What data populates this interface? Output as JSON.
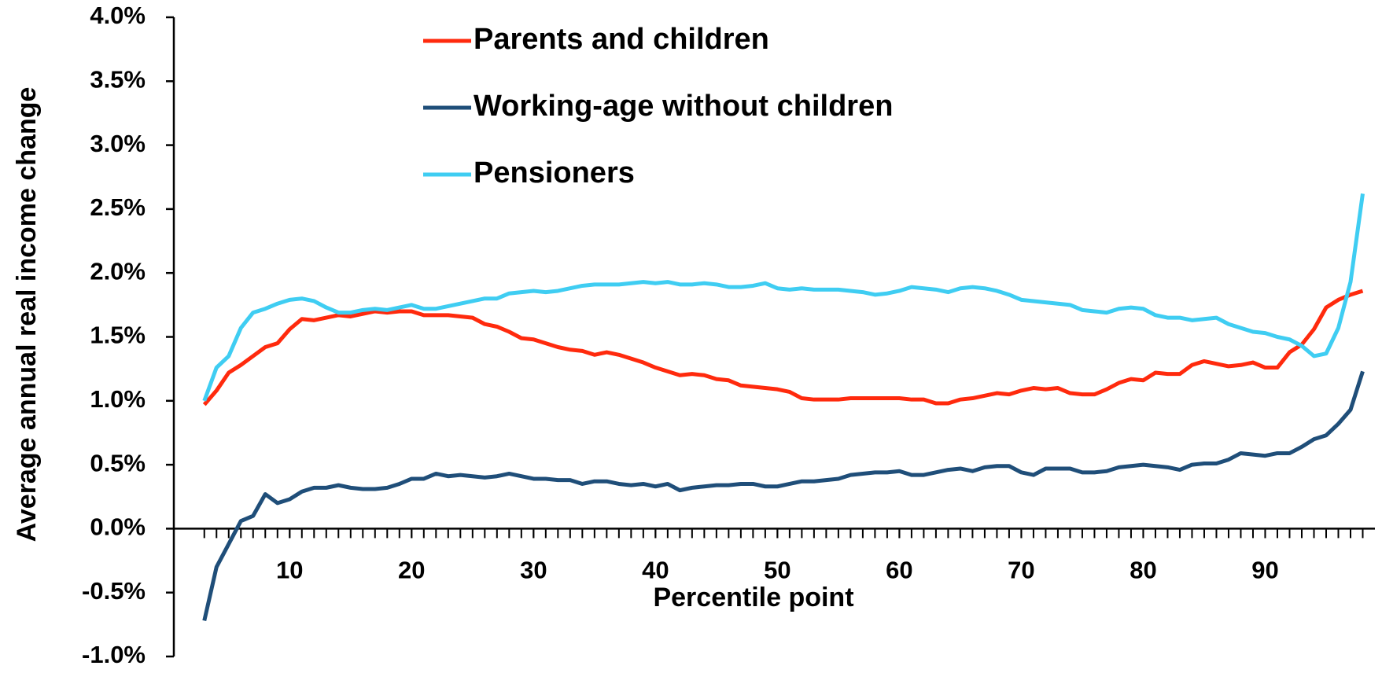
{
  "chart_data": {
    "type": "line",
    "y_label": "Average annual real income change",
    "x_label": "Percentile point",
    "x": [
      3,
      4,
      5,
      6,
      7,
      8,
      9,
      10,
      11,
      12,
      13,
      14,
      15,
      16,
      17,
      18,
      19,
      20,
      21,
      22,
      23,
      24,
      25,
      26,
      27,
      28,
      29,
      30,
      31,
      32,
      33,
      34,
      35,
      36,
      37,
      38,
      39,
      40,
      41,
      42,
      43,
      44,
      45,
      46,
      47,
      48,
      49,
      50,
      51,
      52,
      53,
      54,
      55,
      56,
      57,
      58,
      59,
      60,
      61,
      62,
      63,
      64,
      65,
      66,
      67,
      68,
      69,
      70,
      71,
      72,
      73,
      74,
      75,
      76,
      77,
      78,
      79,
      80,
      81,
      82,
      83,
      84,
      85,
      86,
      87,
      88,
      89,
      90,
      91,
      92,
      93,
      94,
      95,
      96,
      97,
      98
    ],
    "series": [
      {
        "name": "Parents and children",
        "color": "#ff2a0d",
        "values": [
          0.97,
          1.08,
          1.22,
          1.28,
          1.35,
          1.42,
          1.45,
          1.56,
          1.64,
          1.63,
          1.65,
          1.67,
          1.66,
          1.68,
          1.7,
          1.69,
          1.7,
          1.7,
          1.67,
          1.67,
          1.67,
          1.66,
          1.65,
          1.6,
          1.58,
          1.54,
          1.49,
          1.48,
          1.45,
          1.42,
          1.4,
          1.39,
          1.36,
          1.38,
          1.36,
          1.33,
          1.3,
          1.26,
          1.23,
          1.2,
          1.21,
          1.2,
          1.17,
          1.16,
          1.12,
          1.11,
          1.1,
          1.09,
          1.07,
          1.02,
          1.01,
          1.01,
          1.01,
          1.02,
          1.02,
          1.02,
          1.02,
          1.02,
          1.01,
          1.01,
          0.98,
          0.98,
          1.01,
          1.02,
          1.04,
          1.06,
          1.05,
          1.08,
          1.1,
          1.09,
          1.1,
          1.06,
          1.05,
          1.05,
          1.09,
          1.14,
          1.17,
          1.16,
          1.22,
          1.21,
          1.21,
          1.28,
          1.31,
          1.29,
          1.27,
          1.28,
          1.3,
          1.26,
          1.26,
          1.38,
          1.44,
          1.56,
          1.73,
          1.79,
          1.83,
          1.86
        ]
      },
      {
        "name": "Working-age without children",
        "color": "#1f4e79",
        "values": [
          -0.72,
          -0.3,
          -0.12,
          0.06,
          0.1,
          0.27,
          0.2,
          0.23,
          0.29,
          0.32,
          0.32,
          0.34,
          0.32,
          0.31,
          0.31,
          0.32,
          0.35,
          0.39,
          0.39,
          0.43,
          0.41,
          0.42,
          0.41,
          0.4,
          0.41,
          0.43,
          0.41,
          0.39,
          0.39,
          0.38,
          0.38,
          0.35,
          0.37,
          0.37,
          0.35,
          0.34,
          0.35,
          0.33,
          0.35,
          0.3,
          0.32,
          0.33,
          0.34,
          0.34,
          0.35,
          0.35,
          0.33,
          0.33,
          0.35,
          0.37,
          0.37,
          0.38,
          0.39,
          0.42,
          0.43,
          0.44,
          0.44,
          0.45,
          0.42,
          0.42,
          0.44,
          0.46,
          0.47,
          0.45,
          0.48,
          0.49,
          0.49,
          0.44,
          0.42,
          0.47,
          0.47,
          0.47,
          0.44,
          0.44,
          0.45,
          0.48,
          0.49,
          0.5,
          0.49,
          0.48,
          0.46,
          0.5,
          0.51,
          0.51,
          0.54,
          0.59,
          0.58,
          0.57,
          0.59,
          0.59,
          0.64,
          0.7,
          0.73,
          0.82,
          0.93,
          1.23
        ]
      },
      {
        "name": "Pensioners",
        "color": "#3fcdf2",
        "values": [
          1.0,
          1.26,
          1.35,
          1.57,
          1.69,
          1.72,
          1.76,
          1.79,
          1.8,
          1.78,
          1.73,
          1.69,
          1.69,
          1.71,
          1.72,
          1.71,
          1.73,
          1.75,
          1.72,
          1.72,
          1.74,
          1.76,
          1.78,
          1.8,
          1.8,
          1.84,
          1.85,
          1.86,
          1.85,
          1.86,
          1.88,
          1.9,
          1.91,
          1.91,
          1.91,
          1.92,
          1.93,
          1.92,
          1.93,
          1.91,
          1.91,
          1.92,
          1.91,
          1.89,
          1.89,
          1.9,
          1.92,
          1.88,
          1.87,
          1.88,
          1.87,
          1.87,
          1.87,
          1.86,
          1.85,
          1.83,
          1.84,
          1.86,
          1.89,
          1.88,
          1.87,
          1.85,
          1.88,
          1.89,
          1.88,
          1.86,
          1.83,
          1.79,
          1.78,
          1.77,
          1.76,
          1.75,
          1.71,
          1.7,
          1.69,
          1.72,
          1.73,
          1.72,
          1.67,
          1.65,
          1.65,
          1.63,
          1.64,
          1.65,
          1.6,
          1.57,
          1.54,
          1.53,
          1.5,
          1.48,
          1.43,
          1.35,
          1.37,
          1.57,
          1.93,
          2.62
        ]
      }
    ],
    "xlim": [
      0.5,
      99
    ],
    "xticks": [
      10,
      20,
      30,
      40,
      50,
      60,
      70,
      80,
      90
    ],
    "ylim": [
      -1,
      4
    ],
    "yticks": [
      {
        "value": -1,
        "label": "-1.0%"
      },
      {
        "value": -0.5,
        "label": "-0.5%"
      },
      {
        "value": 0,
        "label": "0.0%"
      },
      {
        "value": 0.5,
        "label": "0.5%"
      },
      {
        "value": 1,
        "label": "1.0%"
      },
      {
        "value": 1.5,
        "label": "1.5%"
      },
      {
        "value": 2,
        "label": "2.0%"
      },
      {
        "value": 2.5,
        "label": "2.5%"
      },
      {
        "value": 3,
        "label": "3.0%"
      },
      {
        "value": 3.5,
        "label": "3.5%"
      },
      {
        "value": 4,
        "label": "4.0%"
      }
    ],
    "grid": false
  }
}
